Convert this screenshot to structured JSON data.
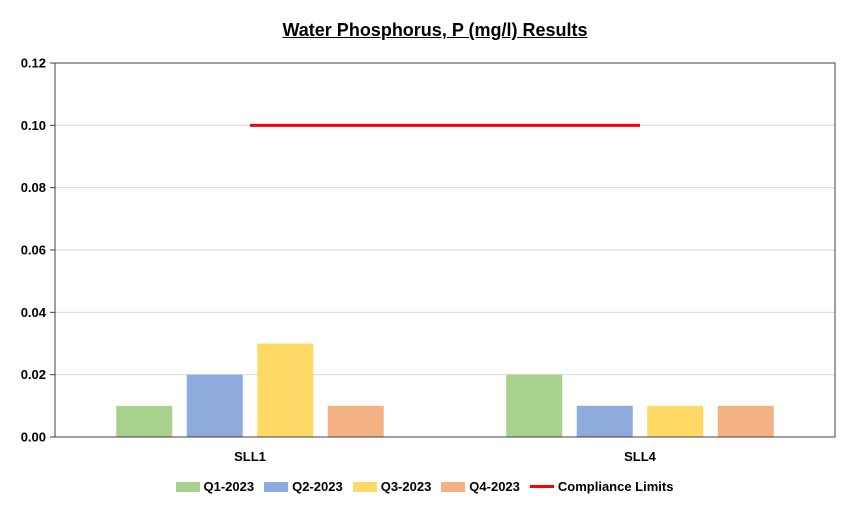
{
  "chart_data": {
    "type": "bar",
    "title": "Water Phosphorus, P (mg/l) Results",
    "categories": [
      "SLL1",
      "SLL4"
    ],
    "series": [
      {
        "name": "Q1-2023",
        "color": "#a9d18e",
        "values": [
          0.01,
          0.02
        ]
      },
      {
        "name": "Q2-2023",
        "color": "#8faadc",
        "values": [
          0.02,
          0.01
        ]
      },
      {
        "name": "Q3-2023",
        "color": "#ffd966",
        "values": [
          0.03,
          0.01
        ]
      },
      {
        "name": "Q4-2023",
        "color": "#f4b183",
        "values": [
          0.01,
          0.01
        ]
      }
    ],
    "compliance_limit": {
      "name": "Compliance Limits",
      "color": "#ff0000",
      "value": 0.1
    },
    "ylim": [
      0,
      0.12
    ],
    "yticks": [
      "0.00",
      "0.02",
      "0.04",
      "0.06",
      "0.08",
      "0.10",
      "0.12"
    ],
    "grid": true,
    "legend_position": "bottom"
  }
}
